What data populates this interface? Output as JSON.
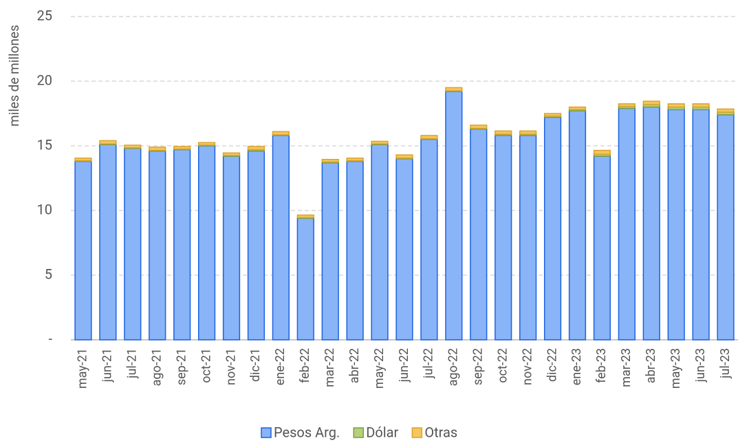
{
  "chart_data": {
    "type": "stacked_bar",
    "ylabel": "miles de millones",
    "categories": [
      "may-21",
      "jun-21",
      "jul-21",
      "ago-21",
      "sep-21",
      "oct-21",
      "nov-21",
      "dic-21",
      "ene-22",
      "feb-22",
      "mar-22",
      "abr-22",
      "may-22",
      "jun-22",
      "jul-22",
      "ago-22",
      "sep-22",
      "oct-22",
      "nov-22",
      "dic-22",
      "ene-23",
      "feb-23",
      "mar-23",
      "abr-23",
      "may-23",
      "jun-23",
      "jul-23"
    ],
    "series": [
      {
        "name": "Pesos Arg.",
        "color": "#8ab4f8",
        "edgecolor": "#1a62e0",
        "values": [
          13.8,
          15.1,
          14.8,
          14.6,
          14.7,
          15.0,
          14.2,
          14.6,
          15.8,
          9.4,
          13.7,
          13.8,
          15.1,
          14.0,
          15.5,
          19.2,
          16.3,
          15.8,
          15.8,
          17.2,
          17.7,
          14.2,
          17.9,
          18.0,
          17.8,
          17.8,
          17.4
        ]
      },
      {
        "name": "Dólar",
        "color": "#b7cf7e",
        "edgecolor": "#78a03c",
        "values": [
          0.05,
          0.05,
          0.05,
          0.05,
          0.05,
          0.05,
          0.05,
          0.1,
          0.05,
          0.05,
          0.05,
          0.05,
          0.05,
          0.05,
          0.05,
          0.05,
          0.05,
          0.1,
          0.1,
          0.1,
          0.1,
          0.15,
          0.15,
          0.2,
          0.2,
          0.2,
          0.2
        ]
      },
      {
        "name": "Otras",
        "color": "#f4c660",
        "edgecolor": "#dca22a",
        "values": [
          0.2,
          0.25,
          0.2,
          0.25,
          0.2,
          0.2,
          0.2,
          0.25,
          0.25,
          0.2,
          0.2,
          0.2,
          0.2,
          0.25,
          0.25,
          0.25,
          0.25,
          0.25,
          0.25,
          0.2,
          0.2,
          0.3,
          0.2,
          0.25,
          0.25,
          0.25,
          0.25
        ]
      }
    ],
    "ylim": [
      0,
      25
    ],
    "yticks": [
      {
        "value": 0,
        "label": "-"
      },
      5,
      10,
      15,
      20,
      25
    ],
    "grid": true,
    "legend": "bottom"
  }
}
